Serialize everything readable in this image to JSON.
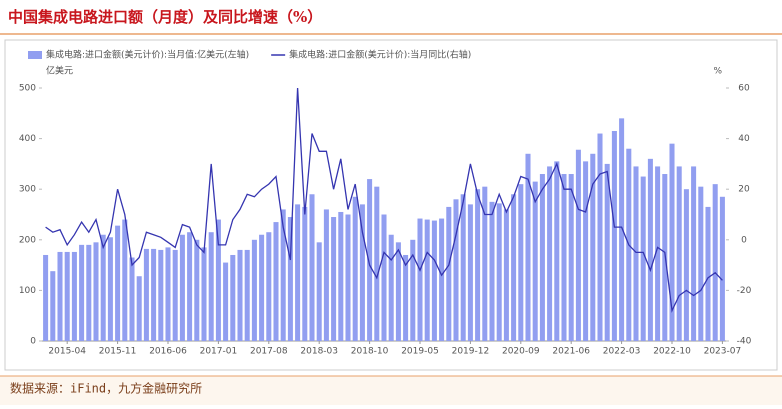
{
  "chart_data": {
    "type": "bar",
    "title": "中国集成电路进口额（月度）及同比增速（%）",
    "source": "数据来源：iFind，九方金融研究所",
    "y_label": "亿美元",
    "y2_label": "%",
    "categories": [
      null,
      null,
      null,
      "2015-04",
      null,
      null,
      null,
      null,
      null,
      null,
      "2015-11",
      null,
      null,
      null,
      null,
      null,
      null,
      "2016-06",
      null,
      null,
      null,
      null,
      null,
      null,
      "2017-01",
      null,
      null,
      null,
      null,
      null,
      null,
      "2017-08",
      null,
      null,
      null,
      null,
      null,
      null,
      "2018-03",
      null,
      null,
      null,
      null,
      null,
      null,
      "2018-10",
      null,
      null,
      null,
      null,
      null,
      null,
      "2019-05",
      null,
      null,
      null,
      null,
      null,
      null,
      "2019-12",
      null,
      null,
      null,
      null,
      null,
      null,
      "2020-09",
      null,
      null,
      null,
      null,
      null,
      null,
      "2021-06",
      null,
      null,
      null,
      null,
      null,
      null,
      "2022-03",
      null,
      null,
      null,
      null,
      null,
      null,
      "2022-10",
      null,
      null,
      null,
      null,
      null,
      null,
      "2023-07"
    ],
    "series": [
      {
        "name": "集成电路:进口金额(美元计价):当月值:亿美元(左轴)",
        "type": "bar",
        "color": "#919ef0",
        "values": [
          170,
          138,
          176,
          176,
          176,
          190,
          190,
          195,
          210,
          205,
          228,
          240,
          165,
          128,
          182,
          182,
          180,
          185,
          180,
          210,
          215,
          200,
          185,
          215,
          240,
          155,
          170,
          180,
          180,
          200,
          210,
          215,
          235,
          260,
          245,
          270,
          265,
          290,
          195,
          260,
          245,
          255,
          250,
          285,
          270,
          320,
          305,
          250,
          210,
          195,
          170,
          200,
          242,
          240,
          238,
          242,
          265,
          280,
          290,
          270,
          300,
          305,
          275,
          272,
          260,
          290,
          310,
          370,
          315,
          330,
          345,
          355,
          330,
          330,
          378,
          355,
          370,
          410,
          350,
          415,
          440,
          380,
          345,
          325,
          360,
          345,
          330,
          390,
          345,
          300,
          345,
          305,
          265,
          310,
          285
        ]
      },
      {
        "name": "集成电路:进口金额(美元计价):当月同比(右轴)",
        "type": "line",
        "axis": "y2",
        "color": "#3535b0",
        "values": [
          5,
          3,
          4,
          -2,
          2,
          7,
          3,
          8,
          -3,
          3,
          20,
          10,
          -10,
          -7,
          3,
          2,
          1,
          -1,
          -3,
          6,
          5,
          -2,
          -5,
          30,
          -2,
          -2,
          8,
          12,
          18,
          17,
          20,
          22,
          25,
          5,
          -8,
          60,
          10,
          42,
          35,
          35,
          20,
          32,
          12,
          22,
          3,
          -10,
          -15,
          -5,
          -8,
          -4,
          -10,
          -6,
          -12,
          -5,
          -8,
          -14,
          -10,
          2,
          15,
          30,
          18,
          10,
          10,
          18,
          11,
          17,
          25,
          24,
          15,
          20,
          24,
          30,
          20,
          20,
          12,
          11,
          22,
          26,
          27,
          5,
          5,
          -2,
          -5,
          -5,
          -12,
          -3,
          -5,
          -28,
          -22,
          -20,
          -22,
          -20,
          -15,
          -13,
          -16
        ]
      }
    ],
    "ylim": [
      0,
      500
    ],
    "yticks": [
      0,
      100,
      200,
      300,
      400,
      500
    ],
    "y2lim": [
      -40,
      60
    ],
    "y2ticks": [
      -40,
      -20,
      0,
      20,
      40,
      60
    ],
    "grid": false
  }
}
